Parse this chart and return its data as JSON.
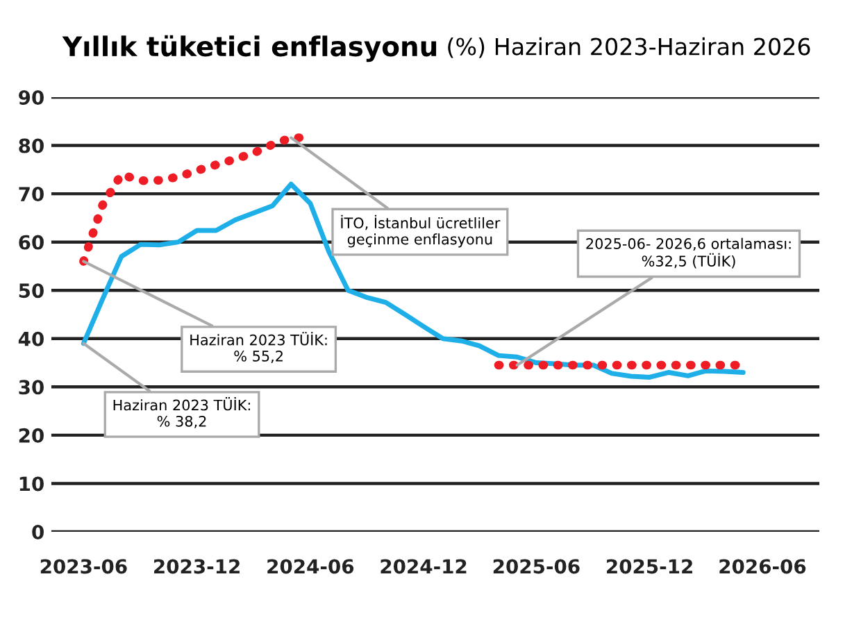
{
  "chart_data": {
    "type": "line",
    "title": "Yıllık tüketici enflasyonu",
    "subtitle": "(%) Haziran 2023-Haziran 2026",
    "series": [
      {
        "color": "#1eaee8",
        "line_style": "solid",
        "x": [
          "2023-06",
          "2023-07",
          "2023-08",
          "2023-09",
          "2023-10",
          "2023-11",
          "2023-12",
          "2024-01",
          "2024-02",
          "2024-03",
          "2024-04",
          "2024-05",
          "2024-06",
          "2024-07",
          "2024-08",
          "2024-09",
          "2024-10",
          "2024-11",
          "2024-12",
          "2025-01",
          "2025-02",
          "2025-03",
          "2025-04",
          "2025-05",
          "2025-06",
          "2025-07",
          "2025-08",
          "2025-09",
          "2025-10",
          "2025-11",
          "2025-12",
          "2026-01",
          "2026-02",
          "2026-03",
          "2026-04",
          "2026-05"
        ],
        "values": [
          39,
          48,
          57,
          59.5,
          59.4,
          60,
          62.4,
          62.4,
          64.6,
          66,
          67.5,
          72,
          68,
          58,
          50,
          48.5,
          47.5,
          45,
          42.5,
          40,
          39.5,
          38.5,
          36.5,
          36.2,
          35,
          34.8,
          34.5,
          34.5,
          32.8,
          32.2,
          32,
          33,
          32.3,
          33.3,
          33.2,
          33
        ]
      },
      {
        "color": "#ee1c25",
        "line_style": "dotted",
        "x": [
          "2023-06",
          "2023-07",
          "2023-08",
          "2023-09",
          "2023-10",
          "2023-11",
          "2023-12",
          "2024-01",
          "2024-02",
          "2024-03",
          "2024-04",
          "2024-05",
          "2024-06"
        ],
        "values": [
          56,
          67.5,
          74,
          72.7,
          72.8,
          73.5,
          74.8,
          76,
          77.2,
          78.4,
          80.2,
          81.6,
          81.6
        ]
      },
      {
        "color": "#ee1c25",
        "line_style": "dotted",
        "x": [
          "2025-04",
          "2026-05"
        ],
        "values": [
          34.5,
          34.5
        ]
      }
    ],
    "annotations": [
      {
        "text": "İTO, İstanbul ücretliler\ngeçinme enflasyonu",
        "x": "2024-05",
        "y": 81.6
      },
      {
        "text": "2025-06- 2026,6 ortalaması:\n%32,5 (TÜİK)",
        "x": "2025-05",
        "y": 34.5
      },
      {
        "text": "Haziran 2023 TÜİK:\n% 55,2",
        "x": "2023-06",
        "y": 56
      },
      {
        "text": "Haziran 2023 TÜİK:\n% 38,2",
        "x": "2023-06",
        "y": 39
      }
    ],
    "xlim": [
      "2023-04-10",
      "2026-09-01"
    ],
    "xticks": [
      "2023-06",
      "2023-12",
      "2024-06",
      "2024-12",
      "2025-06",
      "2025-12",
      "2026-06"
    ],
    "ylim": [
      0,
      90
    ],
    "yticks": [
      0,
      10,
      20,
      30,
      40,
      50,
      60,
      70,
      80,
      90
    ],
    "grid": "y",
    "legend": false
  }
}
